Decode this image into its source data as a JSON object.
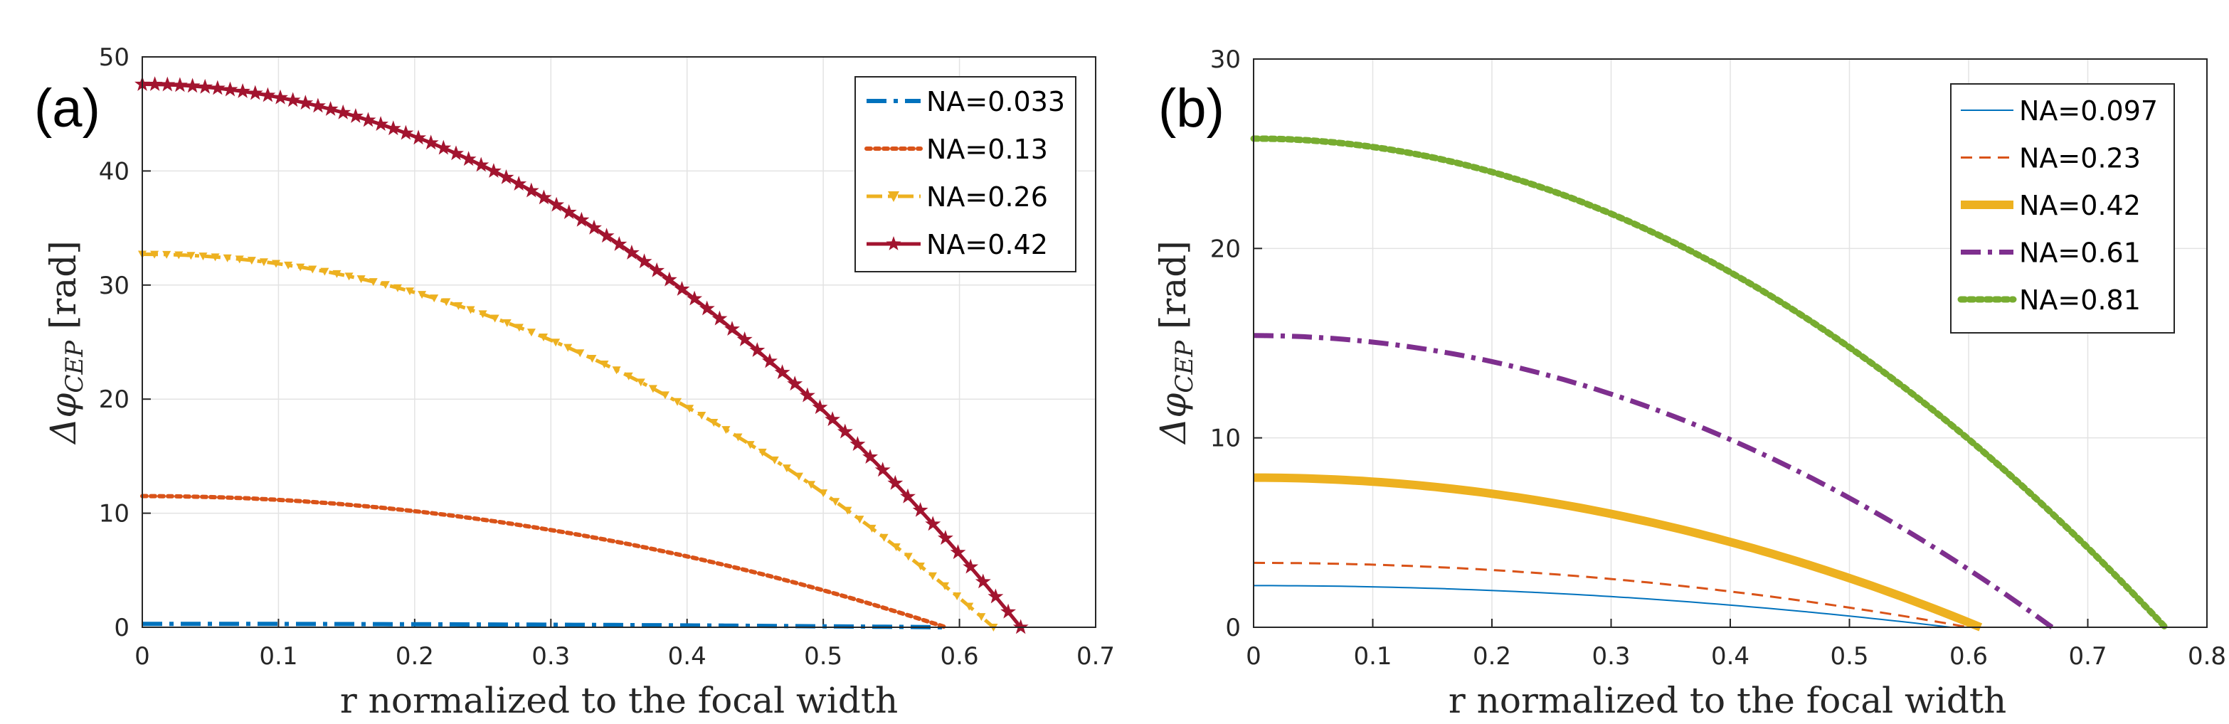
{
  "chart_data": [
    {
      "type": "line",
      "panel_label": "(a)",
      "xlabel": "r normalized to the focal width",
      "ylabel": "Δφ_CEP [rad]",
      "ylabel_main": "Δφ",
      "ylabel_sub": "CEP",
      "ylabel_unit": " [rad]",
      "xlim": [
        0,
        0.7
      ],
      "ylim": [
        0,
        50
      ],
      "xticks": [
        "0",
        "0.1",
        "0.2",
        "0.3",
        "0.4",
        "0.5",
        "0.6",
        "0.7"
      ],
      "yticks": [
        "0",
        "10",
        "20",
        "30",
        "40",
        "50"
      ],
      "grid": true,
      "legend_position": "top-right",
      "series": [
        {
          "name": "NA=0.033",
          "amplitude": 0.3,
          "r_end": 0.59,
          "color": "#0072BD",
          "style": "dashdot",
          "width": 6
        },
        {
          "name": "NA=0.13",
          "amplitude": 11.5,
          "r_end": 0.59,
          "color": "#D95319",
          "style": "dotted",
          "width": 6
        },
        {
          "name": "NA=0.26",
          "amplitude": 32.7,
          "r_end": 0.625,
          "color": "#EDB120",
          "style": "dashdot-triangle",
          "width": 5
        },
        {
          "name": "NA=0.42",
          "amplitude": 47.6,
          "r_end": 0.645,
          "color": "#A2142F",
          "style": "solid-star",
          "width": 5
        }
      ]
    },
    {
      "type": "line",
      "panel_label": "(b)",
      "xlabel": "r normalized to the focal width",
      "ylabel": "Δφ_CEP [rad]",
      "ylabel_main": "Δφ",
      "ylabel_sub": "CEP",
      "ylabel_unit": " [rad]",
      "xlim": [
        0,
        0.8
      ],
      "ylim": [
        0,
        30
      ],
      "xticks": [
        "0",
        "0.1",
        "0.2",
        "0.3",
        "0.4",
        "0.5",
        "0.6",
        "0.7",
        "0.8"
      ],
      "yticks": [
        "0",
        "10",
        "20",
        "30"
      ],
      "grid": true,
      "legend_position": "top-right",
      "series": [
        {
          "name": "NA=0.097",
          "amplitude": 2.2,
          "r_end": 0.585,
          "color": "#0072BD",
          "style": "solid",
          "width": 2
        },
        {
          "name": "NA=0.23",
          "amplitude": 3.4,
          "r_end": 0.6,
          "color": "#D95319",
          "style": "dashed",
          "width": 3
        },
        {
          "name": "NA=0.42",
          "amplitude": 7.9,
          "r_end": 0.61,
          "color": "#EDB120",
          "style": "solid",
          "width": 12
        },
        {
          "name": "NA=0.61",
          "amplitude": 15.4,
          "r_end": 0.67,
          "color": "#7E2F8E",
          "style": "dashdot",
          "width": 7
        },
        {
          "name": "NA=0.81",
          "amplitude": 25.8,
          "r_end": 0.765,
          "color": "#77AC30",
          "style": "dotted",
          "width": 9
        }
      ]
    }
  ]
}
